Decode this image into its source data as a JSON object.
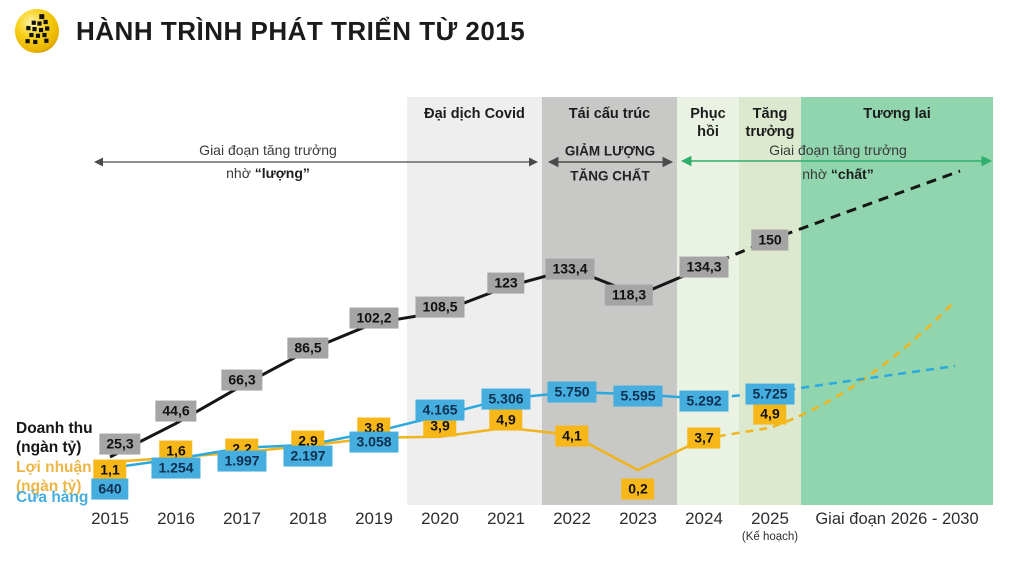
{
  "header": {
    "title": "HÀNH TRÌNH PHÁT TRIỂN TỪ 2015",
    "logo": "pixel-runner-icon",
    "logo_color": "#f5c400"
  },
  "bands": [
    {
      "label": "Đại dịch Covid",
      "color": "#eeeeee"
    },
    {
      "label": "Tái cấu trúc",
      "color": "#c8c8c6",
      "sub_top": "GIẢM LƯỢNG",
      "sub_bottom": "TĂNG CHẤT"
    },
    {
      "label": "Phục hồi",
      "color": "#e9f2e3"
    },
    {
      "label": "Tăng trưởng",
      "color": "#dde9cf"
    },
    {
      "label": "Tương lai",
      "color": "#90d5ae"
    }
  ],
  "arrows": {
    "left": {
      "line1": "Giai đoạn tăng trưởng",
      "line2_prefix": "nhờ ",
      "line2_bold": "“lượng”",
      "color": "#4a4a4a"
    },
    "right": {
      "line1": "Giai đoạn tăng trưởng",
      "line2_prefix": "nhờ ",
      "line2_bold": "“chất”",
      "color": "#2fae6b"
    }
  },
  "legend": [
    {
      "line1": "Doanh thu",
      "line2": "(ngàn tỷ)",
      "color": "#161616"
    },
    {
      "line1": "Lợi nhuận",
      "line2": "(ngàn tỷ)",
      "color": "#edb545"
    },
    {
      "line1": "Cửa hàng",
      "line2": "",
      "color": "#45aede"
    }
  ],
  "chart_data": {
    "type": "line",
    "title": "HÀNH TRÌNH PHÁT TRIỂN TỪ 2015",
    "categories": [
      "2015",
      "2016",
      "2017",
      "2018",
      "2019",
      "2020",
      "2021",
      "2022",
      "2023",
      "2024",
      "2025"
    ],
    "plan_year": "2025",
    "plan_note": "(Kế hoạch)",
    "future_period_label": "Giai đoạn 2026 - 2030",
    "projection_note": "values from 2025 onward are plan/projection (dashed)",
    "series": [
      {
        "name": "Doanh thu (ngàn tỷ)",
        "color": "#161616",
        "label_bg": "#a5a5a5",
        "label_text": "#111111",
        "values": [
          25.3,
          44.6,
          66.3,
          86.5,
          102.2,
          108.5,
          123,
          133.4,
          118.3,
          134.3,
          150
        ],
        "labels": [
          "25,3",
          "44,6",
          "66,3",
          "86,5",
          "102,2",
          "108,5",
          "123",
          "133,4",
          "118,3",
          "134,3",
          "150"
        ],
        "projected_from_index": 9
      },
      {
        "name": "Lợi nhuận (ngàn tỷ)",
        "color": "#f0b41c",
        "label_bg": "#f8b719",
        "label_text": "#111111",
        "values": [
          1.1,
          1.6,
          2.2,
          2.9,
          3.8,
          3.9,
          4.9,
          4.1,
          0.2,
          3.7,
          4.9
        ],
        "labels": [
          "1,1",
          "1,6",
          "2,2",
          "2,9",
          "3,8",
          "3,9",
          "4,9",
          "4,1",
          "0,2",
          "3,7",
          "4,9"
        ],
        "projected_from_index": 9
      },
      {
        "name": "Cửa hàng",
        "color": "#2aa9df",
        "label_bg": "#45aede",
        "label_text": "#0d3050",
        "values": [
          640,
          1254,
          1997,
          2197,
          3058,
          4165,
          5306,
          5750,
          5595,
          5292,
          5725
        ],
        "labels": [
          "640",
          "1.254",
          "1.997",
          "2.197",
          "3.058",
          "4.165",
          "5.306",
          "5.750",
          "5.595",
          "5.292",
          "5.725"
        ],
        "projected_from_index": 9
      }
    ]
  }
}
